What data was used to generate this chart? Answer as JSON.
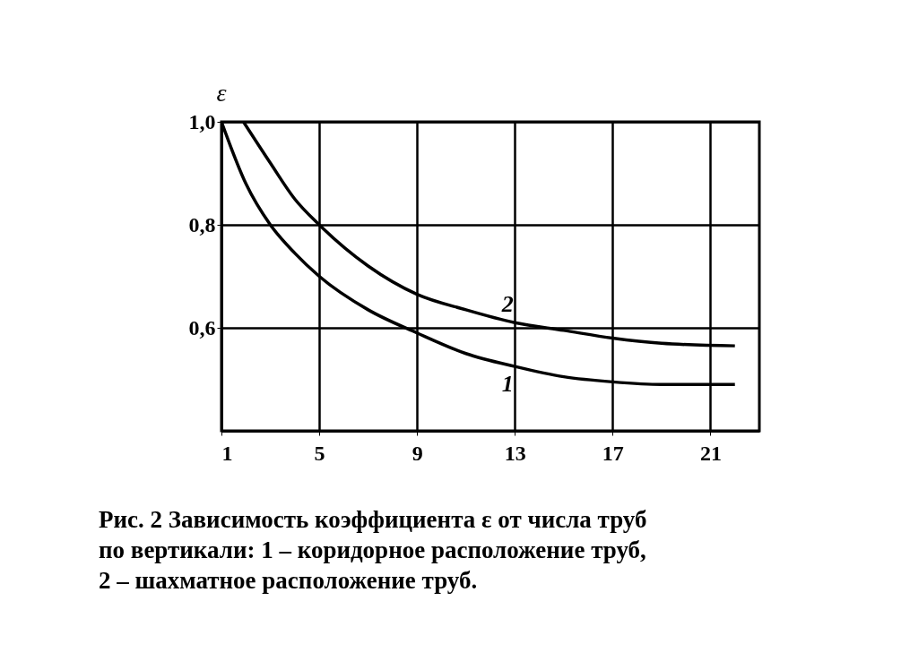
{
  "chart_data": {
    "type": "line",
    "ylabel": "ε",
    "xlim": [
      1,
      23
    ],
    "xticks": [
      1,
      5,
      9,
      13,
      17,
      21
    ],
    "ylim": [
      0.4,
      1.0
    ],
    "yticks": [
      {
        "value": 0.6,
        "label": "0,6"
      },
      {
        "value": 0.8,
        "label": "0,8"
      },
      {
        "value": 1.0,
        "label": "1,0"
      }
    ],
    "grid": true,
    "legend": false,
    "marker": "none",
    "line_style": "solid",
    "series": [
      {
        "name": "1",
        "color": "#000000",
        "x": [
          1,
          2,
          3,
          4,
          5,
          7,
          9,
          11,
          13,
          15,
          17,
          19,
          22
        ],
        "values": [
          1.0,
          0.88,
          0.8,
          0.745,
          0.7,
          0.635,
          0.59,
          0.55,
          0.525,
          0.505,
          0.495,
          0.49,
          0.49
        ]
      },
      {
        "name": "2",
        "color": "#000000",
        "x": [
          1.9,
          3,
          4,
          5,
          7,
          9,
          11,
          13,
          15,
          17,
          19,
          22
        ],
        "values": [
          1.0,
          0.92,
          0.85,
          0.8,
          0.72,
          0.665,
          0.635,
          0.61,
          0.595,
          0.58,
          0.57,
          0.565
        ]
      }
    ],
    "annotations": [
      "Рис. 2  Зависимость коэффициента ε  от числа труб",
      "по вертикали: 1 – коридорное расположение труб,",
      "2 – шахматное расположение труб."
    ]
  }
}
